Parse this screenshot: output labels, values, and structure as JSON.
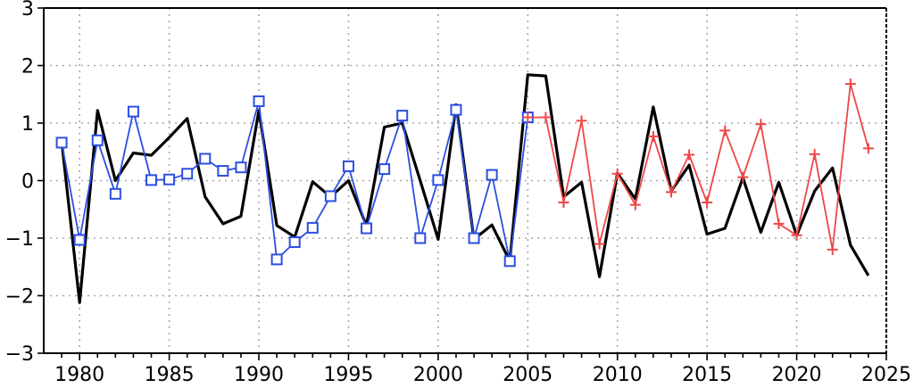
{
  "chart_data": {
    "type": "line",
    "title": "",
    "xlabel": "",
    "ylabel": "",
    "xlim": [
      1978,
      2025
    ],
    "ylim": [
      -3,
      3
    ],
    "x_ticks": [
      1980,
      1985,
      1990,
      1995,
      2000,
      2005,
      2010,
      2015,
      2020,
      2025
    ],
    "y_ticks": [
      -3,
      -2,
      -1,
      0,
      1,
      2,
      3
    ],
    "grid": true,
    "legend": "none",
    "series": [
      {
        "color": "#000000",
        "marker": "none",
        "x": [
          1979,
          1980,
          1981,
          1982,
          1983,
          1984,
          1985,
          1986,
          1987,
          1988,
          1989,
          1990,
          1991,
          1992,
          1993,
          1994,
          1995,
          1996,
          1997,
          1998,
          1999,
          2000,
          2001,
          2002,
          2003,
          2004,
          2005,
          2006,
          2007,
          2008,
          2009,
          2010,
          2011,
          2012,
          2013,
          2014,
          2015,
          2016,
          2017,
          2018,
          2019,
          2020,
          2021,
          2022,
          2023,
          2024
        ],
        "values": [
          0.68,
          -2.12,
          1.22,
          0.0,
          0.48,
          0.44,
          0.75,
          1.08,
          -0.28,
          -0.75,
          -0.62,
          1.22,
          -0.78,
          -0.98,
          -0.02,
          -0.28,
          0.0,
          -0.78,
          0.93,
          1.0,
          0.0,
          -1.02,
          1.32,
          -1.02,
          -0.77,
          -1.4,
          1.84,
          1.82,
          -0.28,
          -0.03,
          -1.67,
          0.13,
          -0.32,
          1.28,
          -0.18,
          0.27,
          -0.93,
          -0.83,
          0.05,
          -0.9,
          -0.03,
          -0.95,
          -0.18,
          0.22,
          -1.12,
          -1.65
        ]
      },
      {
        "color": "#2b4fe0",
        "marker": "square",
        "x": [
          1979,
          1980,
          1981,
          1982,
          1983,
          1984,
          1985,
          1986,
          1987,
          1988,
          1989,
          1990,
          1991,
          1992,
          1993,
          1994,
          1995,
          1996,
          1997,
          1998,
          1999,
          2000,
          2001,
          2002,
          2003,
          2004,
          2005
        ],
        "values": [
          0.66,
          -1.03,
          0.7,
          -0.23,
          1.2,
          0.01,
          0.02,
          0.12,
          0.38,
          0.17,
          0.23,
          1.38,
          -1.37,
          -1.07,
          -0.82,
          -0.27,
          0.25,
          -0.83,
          0.2,
          1.13,
          -1.0,
          0.01,
          1.23,
          -1.0,
          0.1,
          -1.4,
          1.1
        ]
      },
      {
        "color": "#ee4747",
        "marker": "plus",
        "x": [
          2005,
          2006,
          2007,
          2008,
          2009,
          2010,
          2011,
          2012,
          2013,
          2014,
          2015,
          2016,
          2017,
          2018,
          2019,
          2020,
          2021,
          2022,
          2023,
          2024
        ],
        "values": [
          1.1,
          1.1,
          -0.38,
          1.04,
          -1.1,
          0.12,
          -0.42,
          0.77,
          -0.2,
          0.45,
          -0.38,
          0.87,
          0.06,
          0.98,
          -0.75,
          -0.95,
          0.46,
          -1.2,
          1.68,
          0.56
        ]
      }
    ]
  }
}
